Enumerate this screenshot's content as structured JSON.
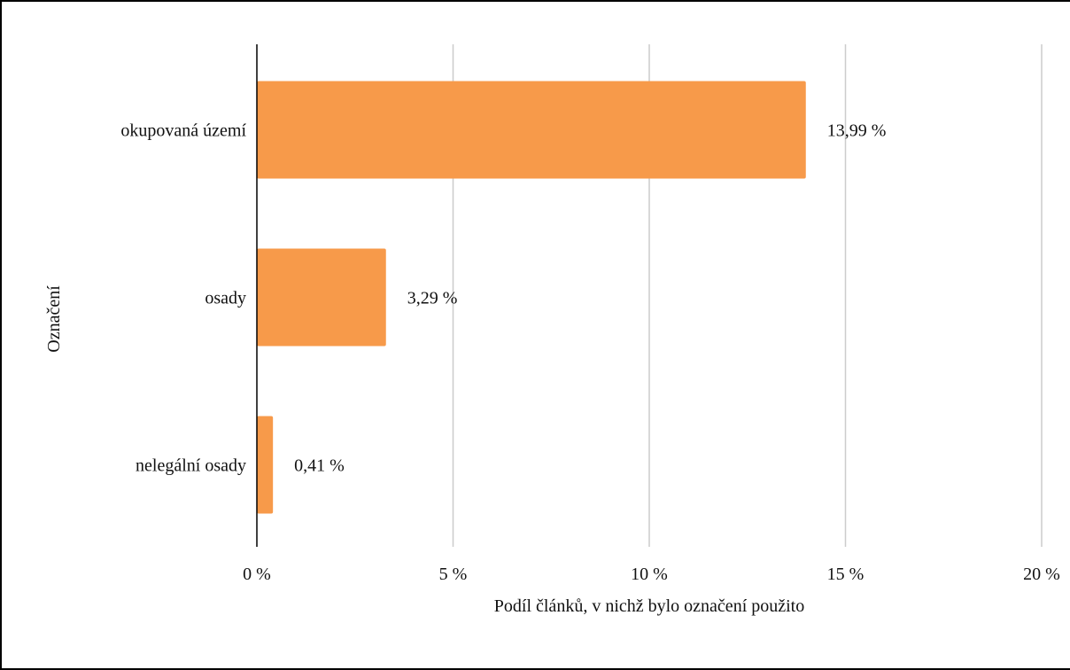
{
  "chart_data": {
    "type": "bar",
    "orientation": "horizontal",
    "categories": [
      "okupovaná území",
      "osady",
      "nelegální osady"
    ],
    "values": [
      13.99,
      3.29,
      0.41
    ],
    "value_labels": [
      "13,99 %",
      "3,29 %",
      "0,41 %"
    ],
    "xlabel": "Podíl článků, v nichž bylo označení použito",
    "ylabel": "Označení",
    "xlim": [
      0,
      20
    ],
    "xticks": [
      0,
      5,
      10,
      15,
      20
    ],
    "xtick_labels": [
      "0 %",
      "5 %",
      "10 %",
      "15 %",
      "20 %"
    ],
    "grid": "vertical",
    "legend": "none",
    "bar_color": "#f79a4a"
  }
}
